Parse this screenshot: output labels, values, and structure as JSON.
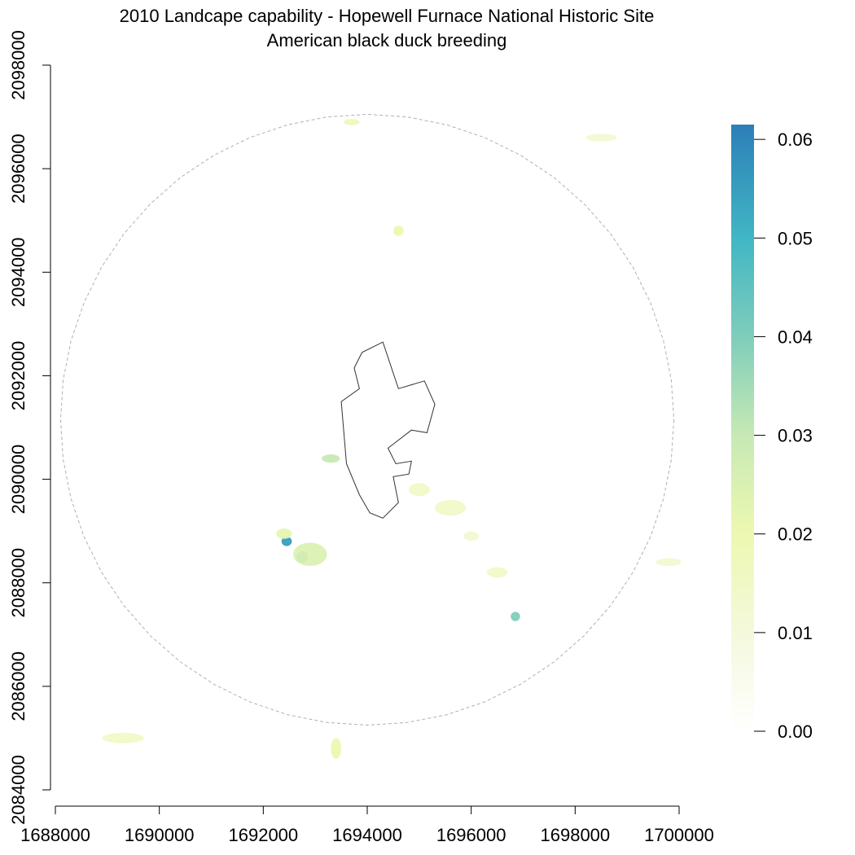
{
  "title": {
    "line1": "2010 Landcape capability - Hopewell Furnace National Historic Site",
    "line2": "American black duck breeding"
  },
  "map": {
    "x_axis": {
      "range": [
        1688000,
        1700000
      ],
      "ticks": [
        {
          "value": 1688000,
          "label": "1688000"
        },
        {
          "value": 1690000,
          "label": "1690000"
        },
        {
          "value": 1692000,
          "label": "1692000"
        },
        {
          "value": 1694000,
          "label": "1694000"
        },
        {
          "value": 1696000,
          "label": "1696000"
        },
        {
          "value": 1698000,
          "label": "1698000"
        },
        {
          "value": 1700000,
          "label": "1700000"
        }
      ]
    },
    "y_axis": {
      "range": [
        2084000,
        2098000
      ],
      "ticks": [
        {
          "value": 2084000,
          "label": "2084000"
        },
        {
          "value": 2086000,
          "label": "2086000"
        },
        {
          "value": 2088000,
          "label": "2088000"
        },
        {
          "value": 2090000,
          "label": "2090000"
        },
        {
          "value": 2092000,
          "label": "2092000"
        },
        {
          "value": 2094000,
          "label": "2094000"
        },
        {
          "value": 2096000,
          "label": "2096000"
        },
        {
          "value": 2098000,
          "label": "2098000"
        }
      ]
    },
    "buffer_circle": {
      "center": [
        1694000,
        2091150
      ],
      "radius": 5900
    },
    "site_boundary": [
      [
        1693750,
        2092150
      ],
      [
        1693900,
        2092450
      ],
      [
        1694300,
        2092650
      ],
      [
        1694600,
        2091750
      ],
      [
        1695100,
        2091900
      ],
      [
        1695300,
        2091450
      ],
      [
        1695150,
        2090900
      ],
      [
        1694850,
        2090950
      ],
      [
        1694400,
        2090600
      ],
      [
        1694550,
        2090300
      ],
      [
        1694850,
        2090350
      ],
      [
        1694800,
        2090100
      ],
      [
        1694500,
        2090050
      ],
      [
        1694600,
        2089550
      ],
      [
        1694300,
        2089250
      ],
      [
        1694050,
        2089350
      ],
      [
        1693850,
        2089700
      ],
      [
        1693600,
        2090300
      ],
      [
        1693550,
        2090900
      ],
      [
        1693500,
        2091500
      ],
      [
        1693850,
        2091750
      ]
    ],
    "capability_patches": [
      {
        "x": 1692450,
        "y": 2088800,
        "v": 0.055,
        "w": 200,
        "h": 180
      },
      {
        "x": 1692750,
        "y": 2088500,
        "v": 0.058,
        "w": 230,
        "h": 220
      },
      {
        "x": 1692900,
        "y": 2088550,
        "v": 0.025,
        "w": 650,
        "h": 450
      },
      {
        "x": 1692400,
        "y": 2088950,
        "v": 0.022,
        "w": 300,
        "h": 200
      },
      {
        "x": 1696850,
        "y": 2087350,
        "v": 0.04,
        "w": 180,
        "h": 180
      },
      {
        "x": 1693300,
        "y": 2090400,
        "v": 0.03,
        "w": 350,
        "h": 160
      },
      {
        "x": 1695600,
        "y": 2089450,
        "v": 0.015,
        "w": 600,
        "h": 300
      },
      {
        "x": 1695000,
        "y": 2089800,
        "v": 0.015,
        "w": 400,
        "h": 250
      },
      {
        "x": 1694600,
        "y": 2094800,
        "v": 0.02,
        "w": 200,
        "h": 200
      },
      {
        "x": 1693700,
        "y": 2096900,
        "v": 0.018,
        "w": 300,
        "h": 120
      },
      {
        "x": 1689300,
        "y": 2085000,
        "v": 0.015,
        "w": 800,
        "h": 200
      },
      {
        "x": 1693400,
        "y": 2084800,
        "v": 0.02,
        "w": 200,
        "h": 400
      },
      {
        "x": 1696500,
        "y": 2088200,
        "v": 0.015,
        "w": 400,
        "h": 200
      },
      {
        "x": 1699800,
        "y": 2088400,
        "v": 0.012,
        "w": 500,
        "h": 150
      },
      {
        "x": 1698500,
        "y": 2096600,
        "v": 0.012,
        "w": 600,
        "h": 150
      },
      {
        "x": 1696000,
        "y": 2088900,
        "v": 0.012,
        "w": 300,
        "h": 180
      }
    ]
  },
  "legend": {
    "min": 0.0,
    "max": 0.0615,
    "ticks": [
      {
        "value": 0.0,
        "label": "0.00"
      },
      {
        "value": 0.01,
        "label": "0.01"
      },
      {
        "value": 0.02,
        "label": "0.02"
      },
      {
        "value": 0.03,
        "label": "0.03"
      },
      {
        "value": 0.04,
        "label": "0.04"
      },
      {
        "value": 0.05,
        "label": "0.05"
      },
      {
        "value": 0.06,
        "label": "0.06"
      }
    ],
    "color_stops": [
      {
        "value": 0.0,
        "color": "#ffffff"
      },
      {
        "value": 0.01,
        "color": "#f4f9dc"
      },
      {
        "value": 0.02,
        "color": "#edf8b1"
      },
      {
        "value": 0.03,
        "color": "#c7e9b4"
      },
      {
        "value": 0.04,
        "color": "#7fcdbb"
      },
      {
        "value": 0.05,
        "color": "#41b6c4"
      },
      {
        "value": 0.0615,
        "color": "#2c7fb8"
      }
    ]
  },
  "colors": {
    "boundary": "#333333",
    "buffer": "#b0b0b0"
  }
}
